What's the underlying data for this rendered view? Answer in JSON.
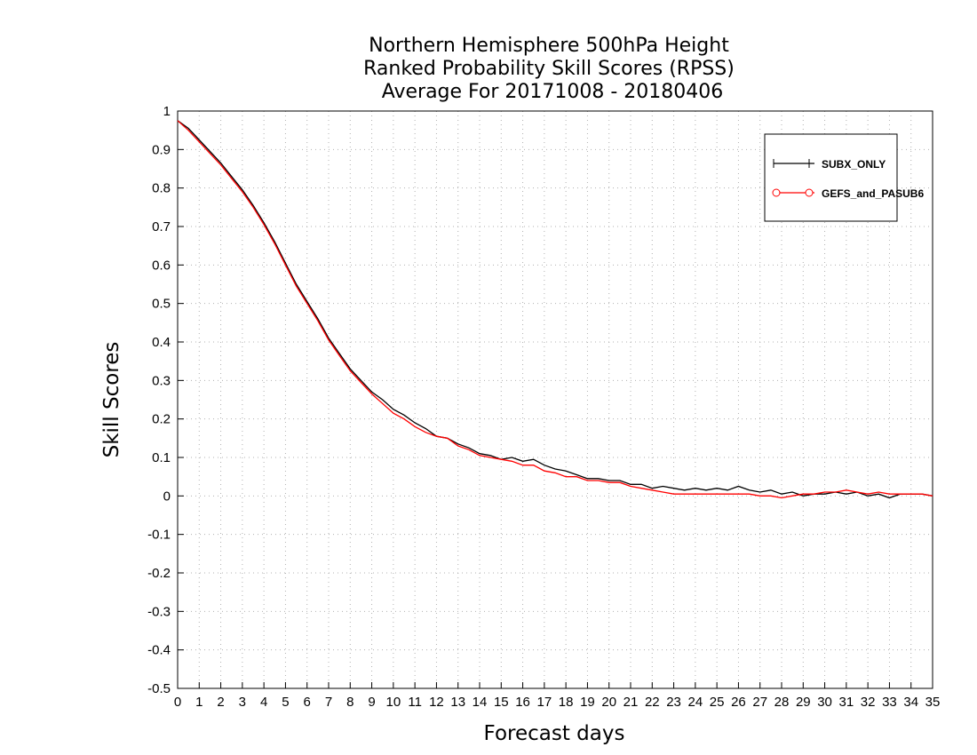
{
  "chart_data": {
    "type": "line",
    "title": [
      "Northern Hemisphere 500hPa Height",
      "Ranked Probability Skill Scores (RPSS)",
      "Average For 20171008 - 20180406"
    ],
    "xlabel": "Forecast days",
    "ylabel": "Skill Scores",
    "xlim": [
      0,
      35
    ],
    "ylim": [
      -0.5,
      1
    ],
    "xticks": [
      0,
      1,
      2,
      3,
      4,
      5,
      6,
      7,
      8,
      9,
      10,
      11,
      12,
      13,
      14,
      15,
      16,
      17,
      18,
      19,
      20,
      21,
      22,
      23,
      24,
      25,
      26,
      27,
      28,
      29,
      30,
      31,
      32,
      33,
      34,
      35
    ],
    "yticks": [
      -0.5,
      -0.4,
      -0.3,
      -0.2,
      -0.1,
      0,
      0.1,
      0.2,
      0.3,
      0.4,
      0.5,
      0.6,
      0.7,
      0.8,
      0.9,
      1
    ],
    "grid": true,
    "legend": "top-right",
    "x": [
      0,
      0.5,
      1,
      1.5,
      2,
      2.5,
      3,
      3.5,
      4,
      4.5,
      5,
      5.5,
      6,
      6.5,
      7,
      7.5,
      8,
      8.5,
      9,
      9.5,
      10,
      10.5,
      11,
      11.5,
      12,
      12.5,
      13,
      13.5,
      14,
      14.5,
      15,
      15.5,
      16,
      16.5,
      17,
      17.5,
      18,
      18.5,
      19,
      19.5,
      20,
      20.5,
      21,
      21.5,
      22,
      22.5,
      23,
      23.5,
      24,
      24.5,
      25,
      25.5,
      26,
      26.5,
      27,
      27.5,
      28,
      28.5,
      29,
      29.5,
      30,
      30.5,
      31,
      31.5,
      32,
      32.5,
      33,
      33.5,
      34,
      34.5,
      35
    ],
    "series": [
      {
        "name": "SUBX_ONLY",
        "color": "#000000",
        "marker": "plus",
        "values": [
          0.975,
          0.955,
          0.925,
          0.895,
          0.865,
          0.83,
          0.795,
          0.755,
          0.71,
          0.66,
          0.605,
          0.55,
          0.505,
          0.46,
          0.41,
          0.37,
          0.33,
          0.3,
          0.27,
          0.25,
          0.225,
          0.21,
          0.19,
          0.175,
          0.155,
          0.15,
          0.135,
          0.125,
          0.11,
          0.105,
          0.095,
          0.1,
          0.09,
          0.095,
          0.08,
          0.07,
          0.065,
          0.055,
          0.045,
          0.045,
          0.04,
          0.04,
          0.03,
          0.03,
          0.02,
          0.025,
          0.02,
          0.015,
          0.02,
          0.015,
          0.02,
          0.015,
          0.025,
          0.015,
          0.01,
          0.015,
          0.005,
          0.01,
          0.0,
          0.005,
          0.005,
          0.01,
          0.005,
          0.01,
          0.0,
          0.005,
          -0.005,
          0.005,
          0.005,
          0.005,
          0.0
        ]
      },
      {
        "name": "GEFS_and_PASUB6",
        "color": "#ff0000",
        "marker": "circle",
        "values": [
          0.975,
          0.95,
          0.92,
          0.89,
          0.86,
          0.825,
          0.79,
          0.75,
          0.705,
          0.655,
          0.6,
          0.545,
          0.5,
          0.455,
          0.405,
          0.365,
          0.325,
          0.295,
          0.265,
          0.24,
          0.215,
          0.2,
          0.18,
          0.165,
          0.155,
          0.15,
          0.13,
          0.12,
          0.105,
          0.1,
          0.095,
          0.09,
          0.08,
          0.08,
          0.065,
          0.06,
          0.05,
          0.05,
          0.04,
          0.04,
          0.035,
          0.035,
          0.025,
          0.02,
          0.015,
          0.01,
          0.005,
          0.005,
          0.005,
          0.005,
          0.005,
          0.005,
          0.005,
          0.005,
          0.0,
          0.0,
          -0.005,
          0.0,
          0.005,
          0.005,
          0.01,
          0.01,
          0.015,
          0.01,
          0.005,
          0.01,
          0.005,
          0.005,
          0.005,
          0.005,
          0.0
        ]
      }
    ]
  }
}
